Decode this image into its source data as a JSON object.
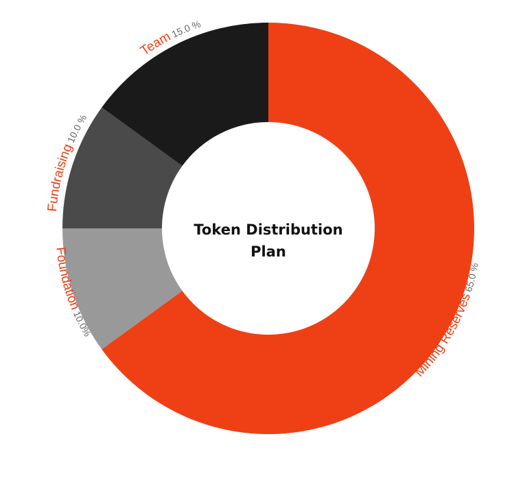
{
  "chart_data": {
    "type": "pie",
    "title_lines": [
      "Token Distribution",
      "Plan"
    ],
    "slices": [
      {
        "name": "Mining Reserves",
        "value": 65.0,
        "value_label": "65.0 %",
        "color": "#ef3f15"
      },
      {
        "name": "Foundation",
        "value": 10.0,
        "value_label": "10.0%",
        "color": "#999999"
      },
      {
        "name": "Fundraising",
        "value": 10.0,
        "value_label": "10.0 %",
        "color": "#4a4a4a"
      },
      {
        "name": "Team",
        "value": 15.0,
        "value_label": "15.0 %",
        "color": "#1a1a1a"
      }
    ],
    "label_name_color": "#ef3f15",
    "label_value_color": "#666666",
    "legend": "none",
    "grid": false
  }
}
